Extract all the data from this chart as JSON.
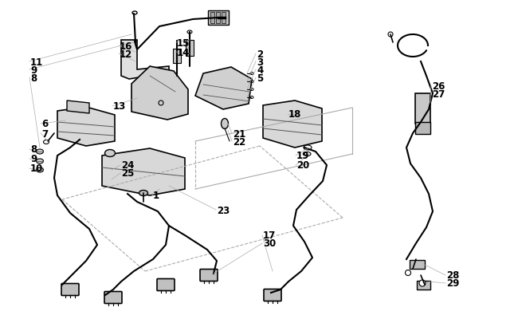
{
  "bg_color": "#ffffff",
  "line_color": "#000000",
  "gray_color": "#888888",
  "light_gray": "#aaaaaa",
  "dark_gray": "#555555",
  "label_fontsize": 8.5,
  "label_fontweight": "bold",
  "fig_width": 6.5,
  "fig_height": 4.06,
  "dpi": 100
}
